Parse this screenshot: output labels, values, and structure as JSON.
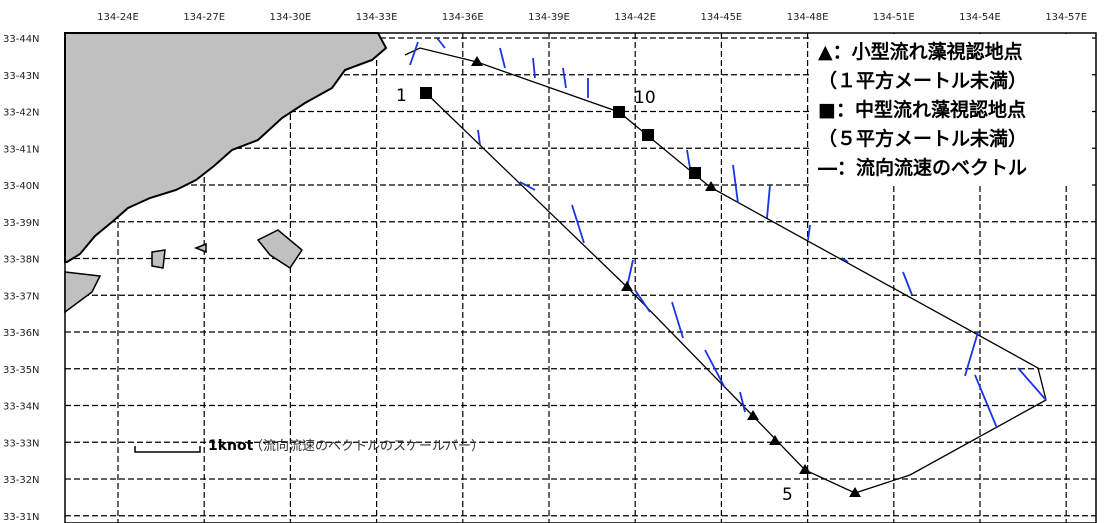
{
  "map": {
    "lon_labels": [
      "134-24E",
      "134-27E",
      "134-30E",
      "134-33E",
      "134-36E",
      "134-39E",
      "134-42E",
      "134-45E",
      "134-48E",
      "134-51E",
      "134-54E",
      "134-57E"
    ],
    "lat_labels": [
      "33-44N",
      "33-43N",
      "33-42N",
      "33-41N",
      "33-40N",
      "33-39N",
      "33-38N",
      "33-37N",
      "33-36N",
      "33-35N",
      "33-34N",
      "33-33N",
      "33-32N",
      "33-31N"
    ],
    "legend": [
      "▲：小型流れ藻視認地点",
      "（１平方メートル未満）",
      "■：中型流れ藻視認地点",
      "（５平方メートル未満）",
      "―：流向流速のベクトル"
    ],
    "point_labels": [
      "1",
      "10",
      "5"
    ],
    "scale_bar": {
      "unit": "1knot",
      "note": "（流向流速のベクトルのスケールバー）"
    }
  }
}
